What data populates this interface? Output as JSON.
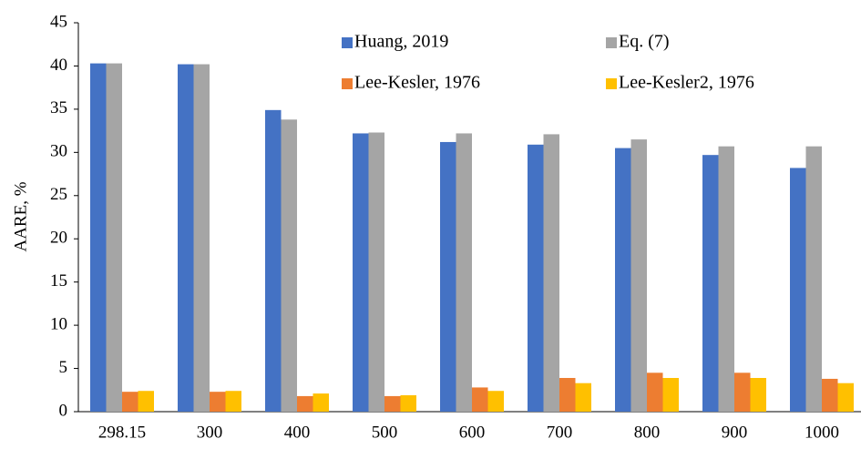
{
  "chart_data": {
    "type": "bar",
    "ylabel": "AARE, %",
    "categories": [
      "298.15",
      "300",
      "400",
      "500",
      "600",
      "700",
      "800",
      "900",
      "1000"
    ],
    "series": [
      {
        "name": "Huang, 2019",
        "color": "#4472c4",
        "values": [
          40.3,
          40.2,
          34.9,
          32.2,
          31.2,
          30.9,
          30.5,
          29.7,
          28.2
        ]
      },
      {
        "name": "Eq. (7)",
        "color": "#a5a5a5",
        "values": [
          40.3,
          40.2,
          33.8,
          32.3,
          32.2,
          32.1,
          31.5,
          30.7,
          30.7
        ]
      },
      {
        "name": "Lee-Kesler, 1976",
        "color": "#ed7d31",
        "values": [
          2.3,
          2.3,
          1.8,
          1.8,
          2.8,
          3.9,
          4.5,
          4.5,
          3.8
        ]
      },
      {
        "name": "Lee-Kesler2, 1976",
        "color": "#ffc000",
        "values": [
          2.4,
          2.4,
          2.1,
          1.9,
          2.4,
          3.3,
          3.9,
          3.9,
          3.3
        ]
      }
    ],
    "ylim": [
      0,
      45
    ],
    "yticks": [
      0,
      5,
      10,
      15,
      20,
      25,
      30,
      35,
      40,
      45
    ],
    "grid": false,
    "legend": "top-right"
  }
}
